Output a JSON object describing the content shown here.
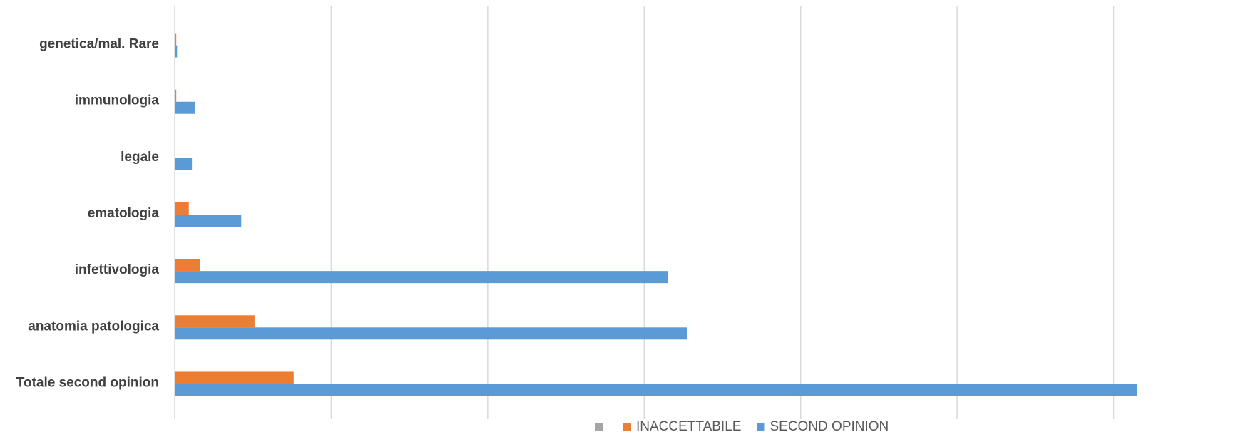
{
  "chart_data": {
    "type": "bar",
    "orientation": "horizontal",
    "categories": [
      "genetica/mal. Rare",
      "immunologia",
      "legale",
      "ematologia",
      "infettivologia",
      "anatomia patologica",
      "Totale second opinion"
    ],
    "series": [
      {
        "name": "",
        "color": "#a5a5a5",
        "values": [
          0,
          0,
          0,
          0,
          0,
          0,
          0
        ]
      },
      {
        "name": "INACCETTABILE",
        "color": "#ed7d31",
        "values": [
          0.2,
          0.2,
          0,
          1.8,
          3.2,
          10.2,
          15.2
        ]
      },
      {
        "name": "SECOND OPINION",
        "color": "#5b9bd5",
        "values": [
          0.3,
          2.6,
          2.2,
          8.5,
          63,
          65.5,
          123
        ]
      }
    ],
    "xlim": [
      0,
      140
    ],
    "xtick_step": 20,
    "xtick_labels_shown": false,
    "grid": true,
    "legend_position": "bottom"
  }
}
